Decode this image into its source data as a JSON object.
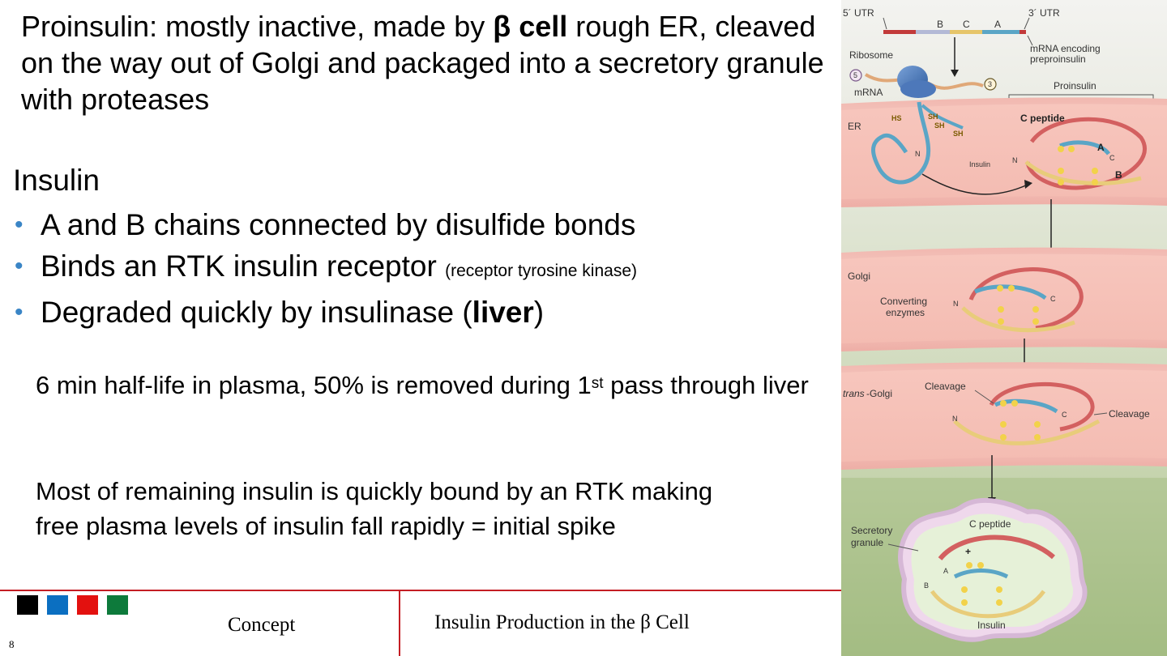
{
  "heading": {
    "part1": "Proinsulin: mostly inactive, made by ",
    "bold": "β cell",
    "part2": " rough ER, cleaved on the way out of Golgi and packaged into a secretory granule with proteases"
  },
  "insulin": {
    "title": "Insulin",
    "bullets": [
      {
        "text": "A and B chains connected by disulfide bonds"
      },
      {
        "text": "Binds an RTK insulin receptor ",
        "small": "(receptor tyrosine kinase)"
      },
      {
        "pre": "Degraded quickly by insulinase (",
        "bold": "liver",
        "post": ")"
      }
    ]
  },
  "para1": {
    "part1": "6 min half-life in plasma, 50% is removed during 1",
    "sup": "st",
    "part2": " pass through liver"
  },
  "para2": {
    "text": "Most of remaining insulin is quickly bound by an RTK making free plasma levels of insulin fall rapidly = initial spike"
  },
  "footer": {
    "left": "Concept",
    "right": "Insulin Production in the β Cell",
    "page": "8",
    "colors": [
      "#000000",
      "#0b6fc1",
      "#e3110f",
      "#0d7a3b"
    ]
  },
  "figure": {
    "utr5": "5´ UTR",
    "utr3": "3´ UTR",
    "seg_b": "B",
    "seg_c": "C",
    "seg_a": "A",
    "mrna_encoding_1": "mRNA encoding",
    "mrna_encoding_2": "preproinsulin",
    "ribosome": "Ribosome",
    "five": "5",
    "three": "3",
    "mrna": "mRNA",
    "proinsulin": "Proinsulin",
    "er": "ER",
    "c_peptide_top": "C peptide",
    "insulin_label": "Insulin",
    "chain_a": "A",
    "chain_b": "B",
    "n": "N",
    "c": "C",
    "golgi": "Golgi",
    "converting_1": "Converting",
    "converting_2": "enzymes",
    "trans": "trans",
    "trans_golgi": "-Golgi",
    "cleavage_1": "Cleavage",
    "cleavage_2": "Cleavage",
    "secretory_1": "Secretory",
    "secretory_2": "granule",
    "c_peptide_bottom": "C peptide",
    "plus": "+",
    "insulin_bottom": "Insulin",
    "hs": "HS",
    "sh": "SH",
    "s": "S"
  }
}
